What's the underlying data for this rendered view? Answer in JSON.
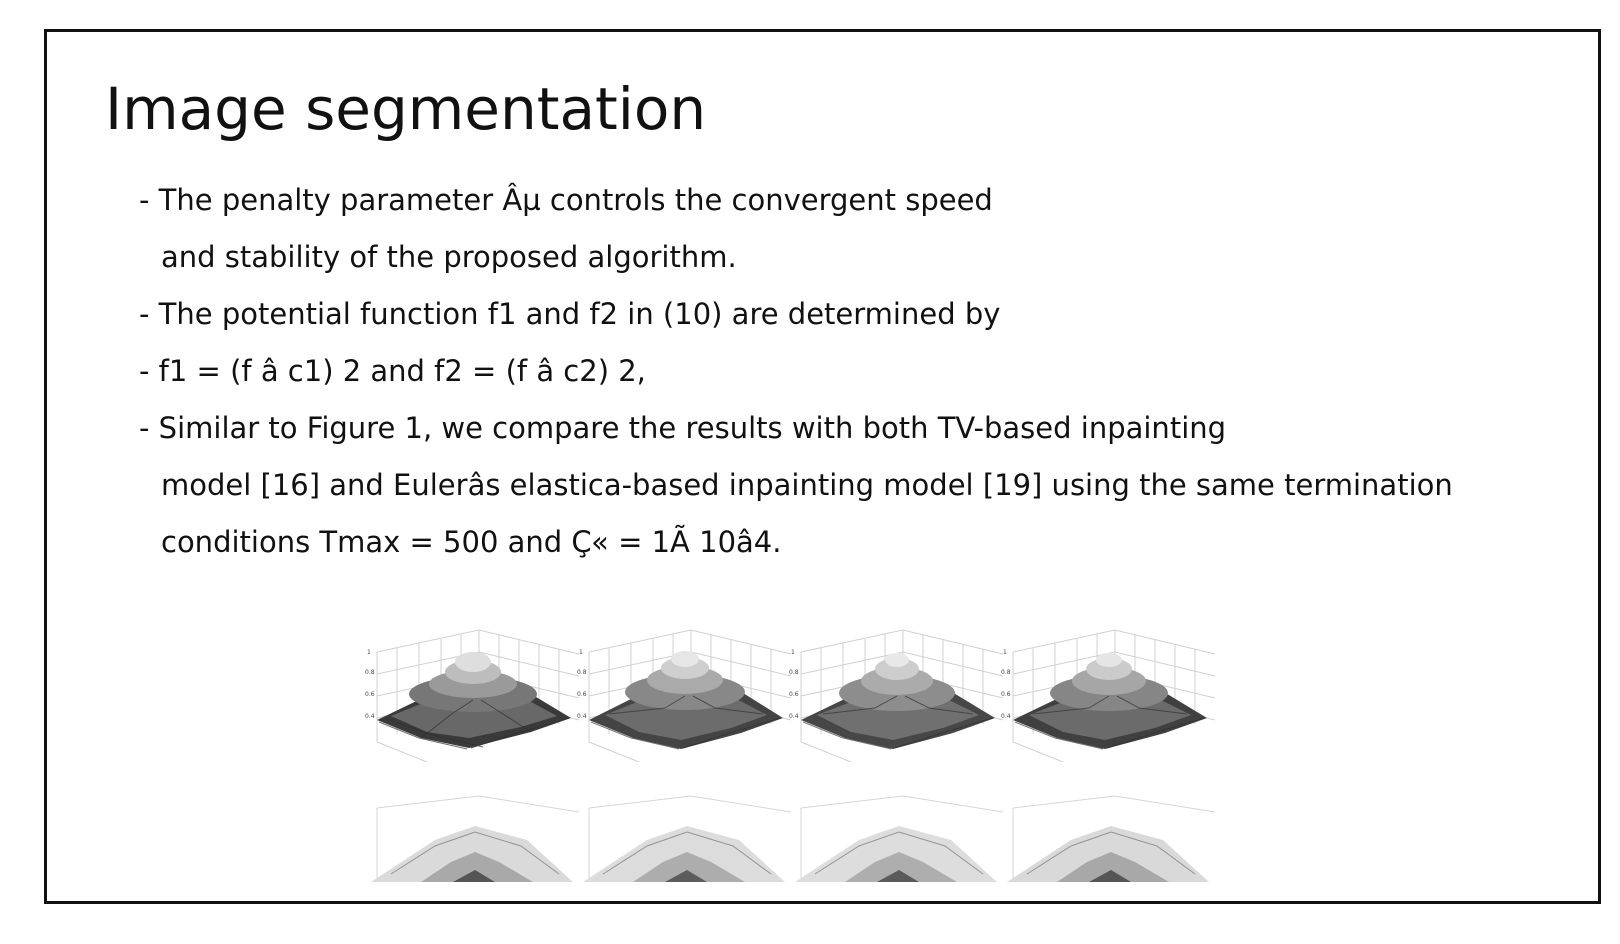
{
  "slide": {
    "title": "Image segmentation",
    "bullets": [
      {
        "text": "- The penalty parameter Âµ controls the convergent speed",
        "continued": false
      },
      {
        "text": "and stability of the proposed algorithm.",
        "continued": true
      },
      {
        "text": "- The potential function f1 and f2 in (10) are determined by",
        "continued": false
      },
      {
        "text": "- f1 = (f â c1) 2 and f2 = (f â c2) 2,",
        "continued": false
      },
      {
        "text": "- Similar to Figure 1, we compare the results with both TV-based inpainting",
        "continued": false
      },
      {
        "text": "model [16] and Eulerâs elastica-based inpainting model [19] using the same termination",
        "continued": true
      },
      {
        "text": "conditions Tmax = 500 and Ç« = 1Ã 10â4.",
        "continued": true
      }
    ]
  },
  "figure": {
    "top_row_count": 4,
    "bottom_row_count": 4,
    "colors": {
      "surface_dark": "#3a3a3a",
      "surface_mid": "#777777",
      "surface_light": "#c9c9c9",
      "grid": "#cfcfcf"
    }
  }
}
